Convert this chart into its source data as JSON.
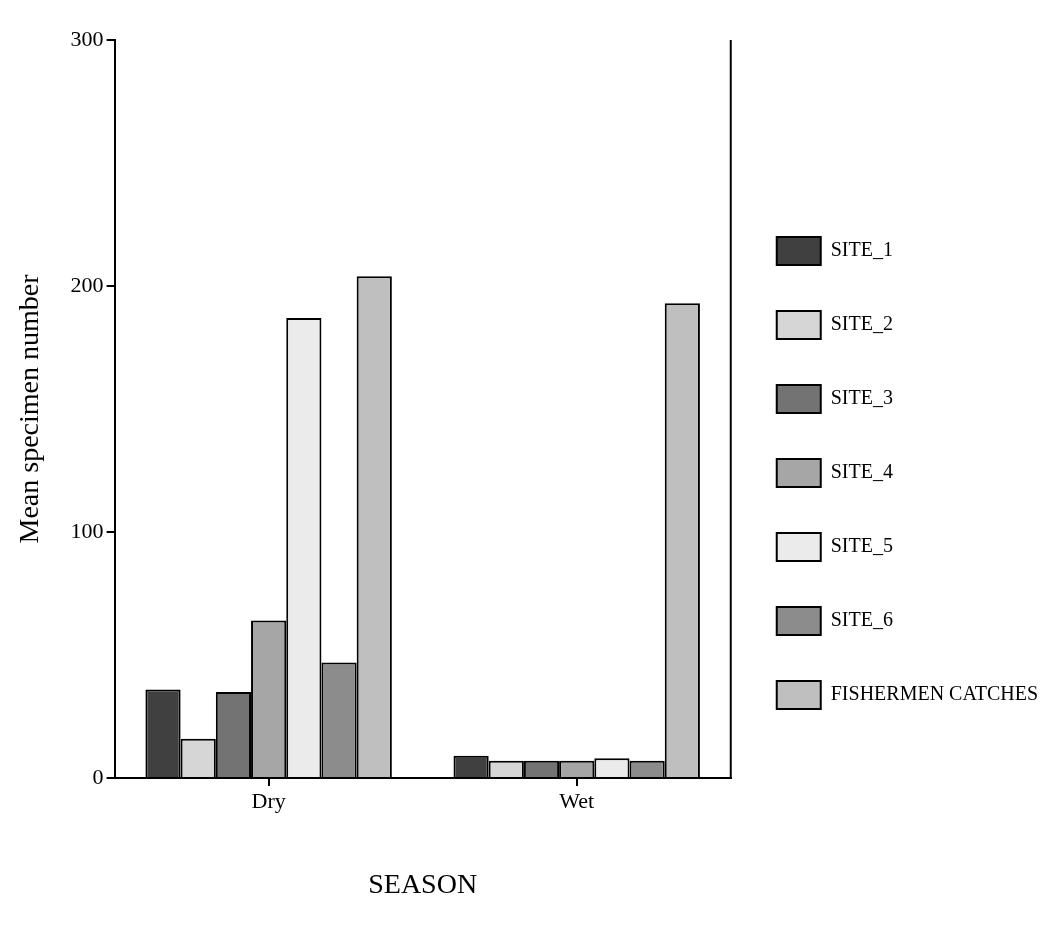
{
  "chart_data": {
    "type": "bar",
    "xlabel": "SEASON",
    "ylabel": "Mean specimen number",
    "categories": [
      "Dry",
      "Wet"
    ],
    "ylim": [
      0,
      300
    ],
    "yticks": [
      0,
      100,
      200,
      300
    ],
    "legend": "right",
    "series": [
      {
        "name": "SITE_1",
        "color": "#404040",
        "values": [
          36,
          9
        ]
      },
      {
        "name": "SITE_2",
        "color": "#d6d6d6",
        "values": [
          16,
          7
        ]
      },
      {
        "name": "SITE_3",
        "color": "#737373",
        "values": [
          35,
          7
        ]
      },
      {
        "name": "SITE_4",
        "color": "#a6a6a6",
        "values": [
          64,
          7
        ]
      },
      {
        "name": "SITE_5",
        "color": "#ebebeb",
        "values": [
          187,
          8
        ]
      },
      {
        "name": "SITE_6",
        "color": "#8c8c8c",
        "values": [
          47,
          7
        ]
      },
      {
        "name": "FISHERMEN CATCHES",
        "color": "#bfbfbf",
        "values": [
          204,
          193
        ]
      }
    ]
  }
}
